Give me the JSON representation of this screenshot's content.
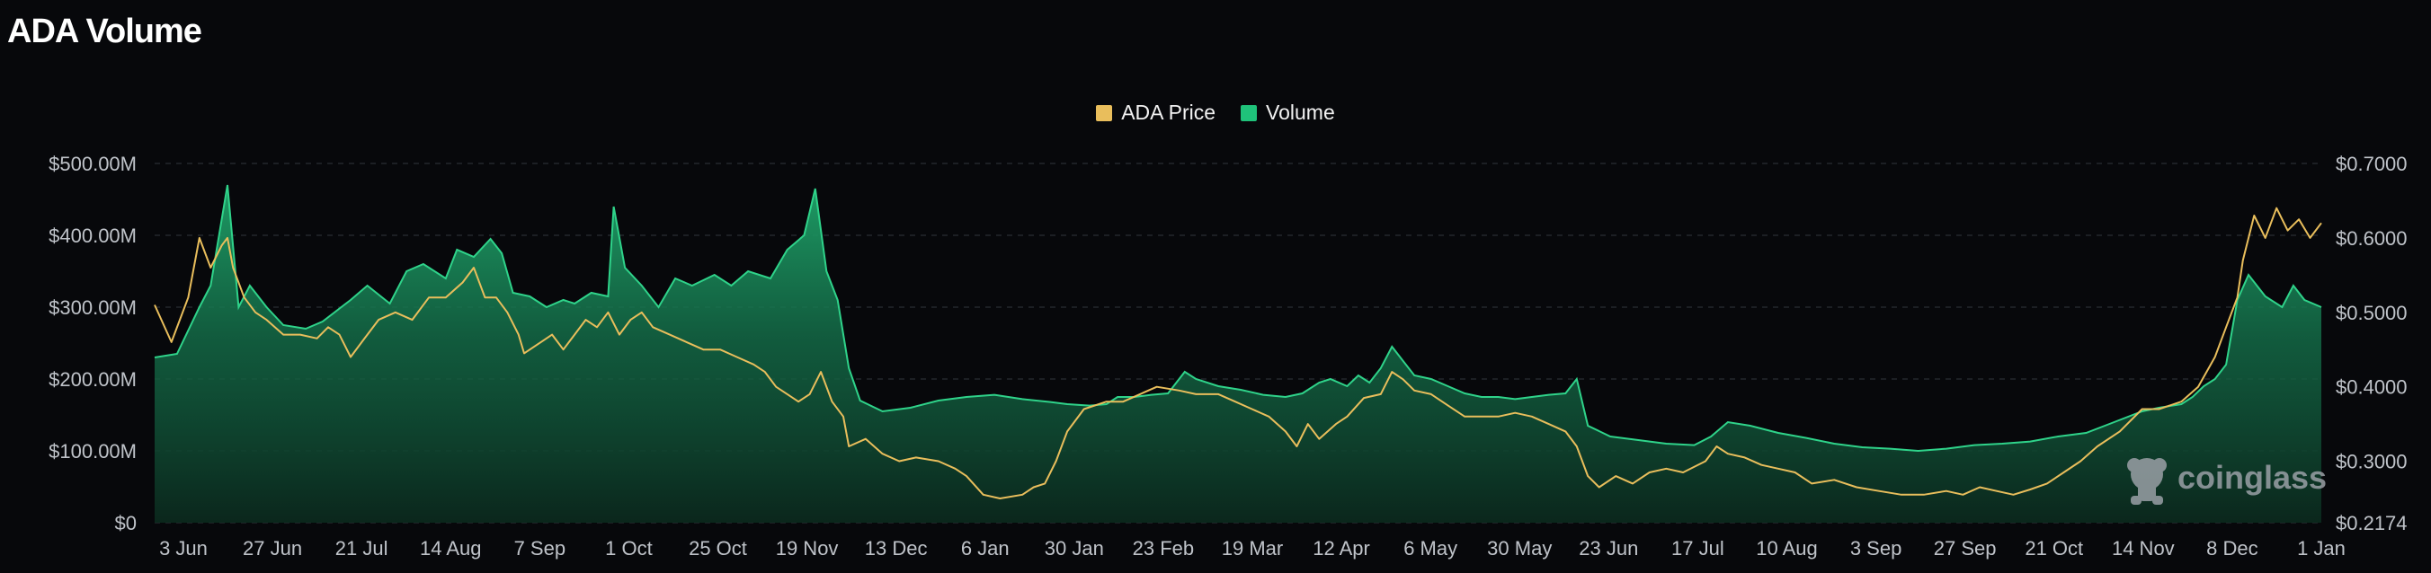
{
  "header": {
    "title": "ADA Volume"
  },
  "watermark": {
    "text": "coinglass",
    "icon": "coinglass-logo-icon"
  },
  "colors": {
    "price": "#e9be5c",
    "volume": "#1fc27a",
    "background": "#07080b",
    "axis_text": "#bfc3c9"
  },
  "chart_data": {
    "type": "area",
    "title": "ADA Volume",
    "legend": {
      "placement": "top-center",
      "entries": [
        {
          "name": "ADA Price",
          "color": "#e9be5c"
        },
        {
          "name": "Volume",
          "color": "#1fc27a"
        }
      ]
    },
    "grid": true,
    "x_ticks": [
      "3 Jun",
      "27 Jun",
      "21 Jul",
      "14 Aug",
      "7 Sep",
      "1 Oct",
      "25 Oct",
      "19 Nov",
      "13 Dec",
      "6 Jan",
      "30 Jan",
      "23 Feb",
      "19 Mar",
      "12 Apr",
      "6 May",
      "30 May",
      "23 Jun",
      "17 Jul",
      "10 Aug",
      "3 Sep",
      "27 Sep",
      "21 Oct",
      "14 Nov",
      "8 Dec",
      "1 Jan"
    ],
    "y_left": {
      "label": "",
      "min": 0,
      "max": 500000000,
      "ticks": [
        "$500.00M",
        "$400.00M",
        "$300.00M",
        "$200.00M",
        "$100.00M",
        "$0"
      ],
      "tick_values": [
        500000000,
        400000000,
        300000000,
        200000000,
        100000000,
        0
      ]
    },
    "y_right": {
      "label": "",
      "min": 0.2174,
      "max": 0.7,
      "ticks": [
        "$0.7000",
        "$0.6000",
        "$0.5000",
        "$0.4000",
        "$0.3000",
        "$0.2174"
      ],
      "tick_values": [
        0.7,
        0.6,
        0.5,
        0.4,
        0.3,
        0.2174
      ]
    },
    "series": [
      {
        "name": "Volume",
        "axis": "left",
        "points": [
          [
            0,
            230
          ],
          [
            4,
            235
          ],
          [
            8,
            300
          ],
          [
            10,
            330
          ],
          [
            13,
            470
          ],
          [
            15,
            300
          ],
          [
            17,
            330
          ],
          [
            20,
            300
          ],
          [
            23,
            275
          ],
          [
            27,
            270
          ],
          [
            30,
            280
          ],
          [
            35,
            310
          ],
          [
            38,
            330
          ],
          [
            42,
            305
          ],
          [
            45,
            350
          ],
          [
            48,
            360
          ],
          [
            52,
            340
          ],
          [
            54,
            380
          ],
          [
            57,
            370
          ],
          [
            60,
            395
          ],
          [
            62,
            375
          ],
          [
            64,
            320
          ],
          [
            67,
            315
          ],
          [
            70,
            300
          ],
          [
            73,
            310
          ],
          [
            75,
            305
          ],
          [
            78,
            320
          ],
          [
            81,
            315
          ],
          [
            82,
            440
          ],
          [
            84,
            355
          ],
          [
            87,
            330
          ],
          [
            90,
            300
          ],
          [
            93,
            340
          ],
          [
            96,
            330
          ],
          [
            100,
            345
          ],
          [
            103,
            330
          ],
          [
            106,
            350
          ],
          [
            110,
            340
          ],
          [
            113,
            380
          ],
          [
            116,
            400
          ],
          [
            118,
            465
          ],
          [
            120,
            350
          ],
          [
            122,
            310
          ],
          [
            124,
            215
          ],
          [
            126,
            170
          ],
          [
            130,
            155
          ],
          [
            135,
            160
          ],
          [
            140,
            170
          ],
          [
            145,
            175
          ],
          [
            150,
            178
          ],
          [
            155,
            172
          ],
          [
            160,
            168
          ],
          [
            163,
            165
          ],
          [
            167,
            163
          ],
          [
            170,
            165
          ],
          [
            172,
            175
          ],
          [
            175,
            175
          ],
          [
            178,
            178
          ],
          [
            181,
            180
          ],
          [
            184,
            210
          ],
          [
            186,
            200
          ],
          [
            190,
            190
          ],
          [
            194,
            185
          ],
          [
            198,
            178
          ],
          [
            202,
            175
          ],
          [
            205,
            180
          ],
          [
            208,
            195
          ],
          [
            210,
            200
          ],
          [
            213,
            190
          ],
          [
            215,
            205
          ],
          [
            217,
            195
          ],
          [
            219,
            215
          ],
          [
            221,
            245
          ],
          [
            223,
            225
          ],
          [
            225,
            205
          ],
          [
            228,
            200
          ],
          [
            231,
            190
          ],
          [
            234,
            180
          ],
          [
            237,
            175
          ],
          [
            240,
            175
          ],
          [
            243,
            172
          ],
          [
            246,
            175
          ],
          [
            249,
            178
          ],
          [
            252,
            180
          ],
          [
            254,
            200
          ],
          [
            256,
            135
          ],
          [
            260,
            120
          ],
          [
            265,
            115
          ],
          [
            270,
            110
          ],
          [
            275,
            108
          ],
          [
            278,
            120
          ],
          [
            281,
            140
          ],
          [
            285,
            135
          ],
          [
            290,
            125
          ],
          [
            295,
            118
          ],
          [
            300,
            110
          ],
          [
            305,
            105
          ],
          [
            310,
            103
          ],
          [
            315,
            100
          ],
          [
            320,
            103
          ],
          [
            325,
            108
          ],
          [
            330,
            110
          ],
          [
            335,
            113
          ],
          [
            340,
            120
          ],
          [
            345,
            125
          ],
          [
            350,
            140
          ],
          [
            355,
            155
          ],
          [
            358,
            160
          ],
          [
            362,
            165
          ],
          [
            364,
            175
          ],
          [
            366,
            190
          ],
          [
            368,
            200
          ],
          [
            370,
            220
          ],
          [
            372,
            310
          ],
          [
            374,
            345
          ],
          [
            377,
            315
          ],
          [
            380,
            300
          ],
          [
            382,
            330
          ],
          [
            384,
            310
          ],
          [
            387,
            300
          ]
        ]
      },
      {
        "name": "ADA Price",
        "axis": "right",
        "points": [
          [
            0,
            0.51
          ],
          [
            3,
            0.46
          ],
          [
            6,
            0.52
          ],
          [
            8,
            0.6
          ],
          [
            10,
            0.56
          ],
          [
            12,
            0.59
          ],
          [
            13,
            0.6
          ],
          [
            14,
            0.56
          ],
          [
            16,
            0.52
          ],
          [
            18,
            0.5
          ],
          [
            20,
            0.49
          ],
          [
            23,
            0.47
          ],
          [
            26,
            0.47
          ],
          [
            29,
            0.465
          ],
          [
            31,
            0.48
          ],
          [
            33,
            0.47
          ],
          [
            35,
            0.44
          ],
          [
            37,
            0.46
          ],
          [
            40,
            0.49
          ],
          [
            43,
            0.5
          ],
          [
            46,
            0.49
          ],
          [
            49,
            0.52
          ],
          [
            52,
            0.52
          ],
          [
            55,
            0.54
          ],
          [
            57,
            0.56
          ],
          [
            59,
            0.52
          ],
          [
            61,
            0.52
          ],
          [
            63,
            0.5
          ],
          [
            65,
            0.47
          ],
          [
            66,
            0.445
          ],
          [
            69,
            0.46
          ],
          [
            71,
            0.47
          ],
          [
            73,
            0.45
          ],
          [
            75,
            0.47
          ],
          [
            77,
            0.49
          ],
          [
            79,
            0.48
          ],
          [
            81,
            0.5
          ],
          [
            83,
            0.47
          ],
          [
            85,
            0.49
          ],
          [
            87,
            0.5
          ],
          [
            89,
            0.48
          ],
          [
            92,
            0.47
          ],
          [
            95,
            0.46
          ],
          [
            98,
            0.45
          ],
          [
            101,
            0.45
          ],
          [
            104,
            0.44
          ],
          [
            107,
            0.43
          ],
          [
            109,
            0.42
          ],
          [
            111,
            0.4
          ],
          [
            113,
            0.39
          ],
          [
            115,
            0.38
          ],
          [
            117,
            0.39
          ],
          [
            119,
            0.42
          ],
          [
            121,
            0.38
          ],
          [
            123,
            0.36
          ],
          [
            124,
            0.32
          ],
          [
            127,
            0.33
          ],
          [
            130,
            0.31
          ],
          [
            133,
            0.3
          ],
          [
            136,
            0.305
          ],
          [
            140,
            0.3
          ],
          [
            143,
            0.29
          ],
          [
            145,
            0.28
          ],
          [
            148,
            0.255
          ],
          [
            151,
            0.25
          ],
          [
            155,
            0.255
          ],
          [
            157,
            0.265
          ],
          [
            159,
            0.27
          ],
          [
            161,
            0.3
          ],
          [
            163,
            0.34
          ],
          [
            166,
            0.37
          ],
          [
            170,
            0.38
          ],
          [
            173,
            0.38
          ],
          [
            176,
            0.39
          ],
          [
            179,
            0.4
          ],
          [
            183,
            0.395
          ],
          [
            186,
            0.39
          ],
          [
            190,
            0.39
          ],
          [
            193,
            0.38
          ],
          [
            196,
            0.37
          ],
          [
            199,
            0.36
          ],
          [
            202,
            0.34
          ],
          [
            204,
            0.32
          ],
          [
            206,
            0.35
          ],
          [
            208,
            0.33
          ],
          [
            211,
            0.35
          ],
          [
            213,
            0.36
          ],
          [
            216,
            0.385
          ],
          [
            219,
            0.39
          ],
          [
            221,
            0.42
          ],
          [
            223,
            0.41
          ],
          [
            225,
            0.395
          ],
          [
            228,
            0.39
          ],
          [
            231,
            0.375
          ],
          [
            234,
            0.36
          ],
          [
            237,
            0.36
          ],
          [
            240,
            0.36
          ],
          [
            243,
            0.365
          ],
          [
            246,
            0.36
          ],
          [
            249,
            0.35
          ],
          [
            252,
            0.34
          ],
          [
            254,
            0.32
          ],
          [
            256,
            0.28
          ],
          [
            258,
            0.265
          ],
          [
            261,
            0.28
          ],
          [
            264,
            0.27
          ],
          [
            267,
            0.285
          ],
          [
            270,
            0.29
          ],
          [
            273,
            0.285
          ],
          [
            277,
            0.3
          ],
          [
            279,
            0.32
          ],
          [
            281,
            0.31
          ],
          [
            284,
            0.305
          ],
          [
            287,
            0.295
          ],
          [
            290,
            0.29
          ],
          [
            293,
            0.285
          ],
          [
            296,
            0.27
          ],
          [
            300,
            0.275
          ],
          [
            304,
            0.265
          ],
          [
            308,
            0.26
          ],
          [
            312,
            0.255
          ],
          [
            316,
            0.255
          ],
          [
            320,
            0.26
          ],
          [
            323,
            0.255
          ],
          [
            326,
            0.265
          ],
          [
            329,
            0.26
          ],
          [
            332,
            0.255
          ],
          [
            335,
            0.262
          ],
          [
            338,
            0.27
          ],
          [
            341,
            0.285
          ],
          [
            344,
            0.3
          ],
          [
            347,
            0.32
          ],
          [
            351,
            0.34
          ],
          [
            355,
            0.37
          ],
          [
            358,
            0.37
          ],
          [
            362,
            0.38
          ],
          [
            365,
            0.4
          ],
          [
            368,
            0.44
          ],
          [
            370,
            0.48
          ],
          [
            372,
            0.52
          ],
          [
            373,
            0.57
          ],
          [
            375,
            0.63
          ],
          [
            377,
            0.6
          ],
          [
            379,
            0.64
          ],
          [
            381,
            0.61
          ],
          [
            383,
            0.625
          ],
          [
            385,
            0.6
          ],
          [
            387,
            0.62
          ]
        ]
      }
    ]
  }
}
